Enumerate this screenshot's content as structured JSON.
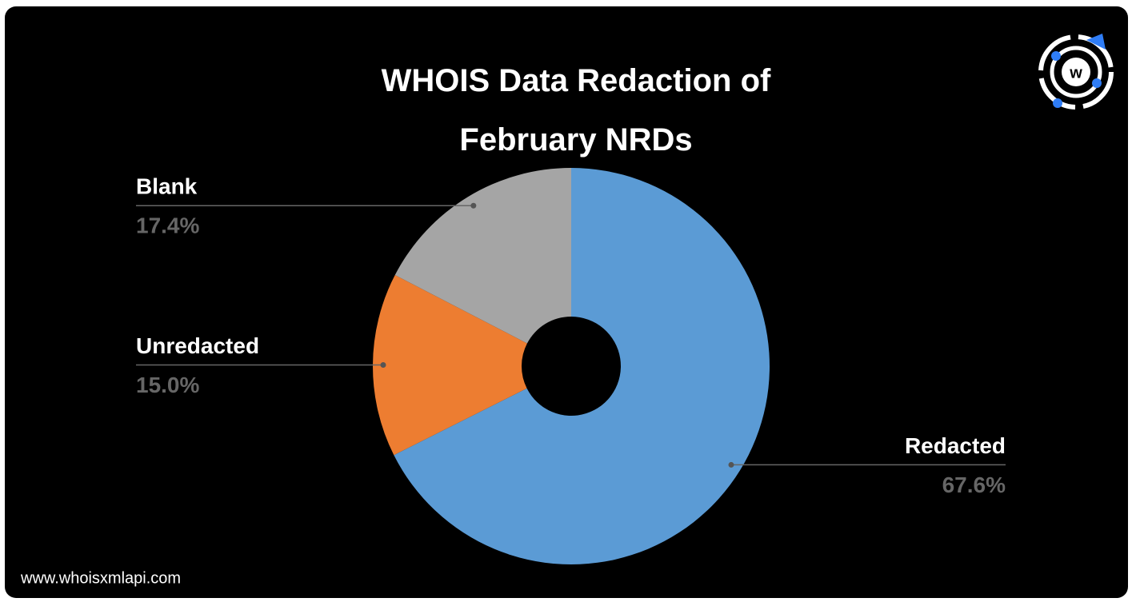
{
  "chart_data": {
    "type": "donut",
    "title": "WHOIS Data Redaction of February NRDs",
    "categories": [
      "Redacted",
      "Unredacted",
      "Blank"
    ],
    "values": [
      67.6,
      15.0,
      17.4
    ],
    "value_labels": [
      "67.6%",
      "15.0%",
      "17.4%"
    ],
    "colors": [
      "#5b9bd5",
      "#ed7d31",
      "#a5a5a5"
    ]
  },
  "footer": "www.whoisxmlapi.com"
}
